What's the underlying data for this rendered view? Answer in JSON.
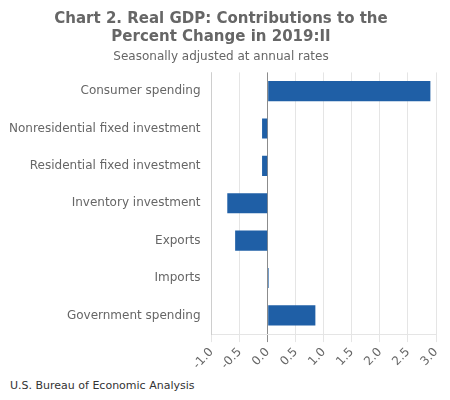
{
  "chart_data": {
    "type": "bar",
    "orientation": "horizontal",
    "title": [
      "Chart 2. Real GDP: Contributions to the",
      "Percent Change in 2019:II"
    ],
    "subtitle": "Seasonally adjusted at annual rates",
    "footer": "U.S. Bureau of Economic Analysis",
    "categories": [
      "Consumer spending",
      "Nonresidential fixed investment",
      "Residential fixed investment",
      "Inventory investment",
      "Exports",
      "Imports",
      "Government spending"
    ],
    "values": [
      2.9,
      -0.1,
      -0.1,
      -0.72,
      -0.58,
      0.02,
      0.85
    ],
    "color": "#1f5fa6",
    "xlim": [
      -1.0,
      3.0
    ],
    "xticks": [
      {
        "value": -1,
        "label": "-1.0"
      },
      -0.5,
      {
        "value": 0,
        "label": "0.0"
      },
      0.5,
      {
        "value": 1,
        "label": "1.0"
      },
      1.5,
      {
        "value": 2,
        "label": "2.0"
      },
      2.5,
      {
        "value": 3,
        "label": "3.0"
      }
    ],
    "grid": true
  }
}
